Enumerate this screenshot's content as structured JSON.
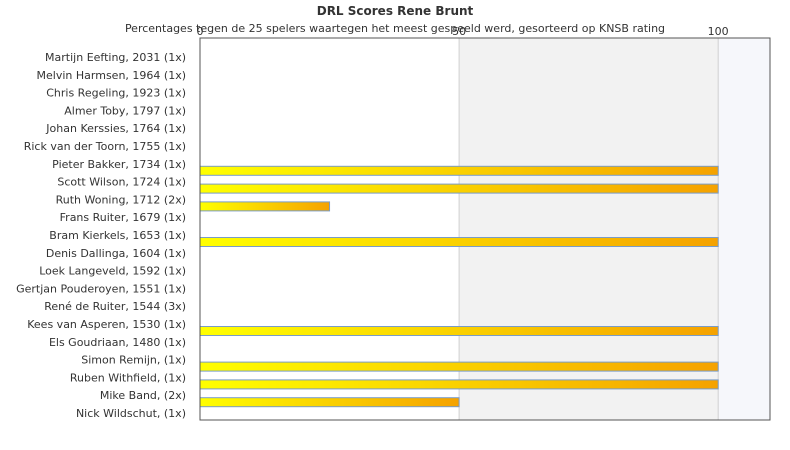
{
  "chart_data": {
    "type": "bar",
    "orientation": "horizontal",
    "title": "DRL Scores Rene Brunt",
    "subtitle": "Percentages tegen de 25 spelers waartegen het meest gespeeld werd, gesorteerd op KNSB rating",
    "xlim": [
      0,
      110
    ],
    "xticks": [
      0,
      50,
      100
    ],
    "categories": [
      "Martijn Eefting, 2031 (1x)",
      "Melvin Harmsen, 1964 (1x)",
      "Chris Regeling, 1923 (1x)",
      "Almer Toby, 1797 (1x)",
      "Johan Kerssies, 1764 (1x)",
      "Rick van der Toorn, 1755 (1x)",
      "Pieter Bakker, 1734 (1x)",
      "Scott Wilson, 1724 (1x)",
      "Ruth Woning, 1712 (2x)",
      "Frans Ruiter, 1679 (1x)",
      "Bram Kierkels, 1653 (1x)",
      "Denis Dallinga, 1604 (1x)",
      "Loek Langeveld, 1592 (1x)",
      "Gertjan Pouderoyen, 1551 (1x)",
      "René de Ruiter, 1544 (3x)",
      "Kees van Asperen, 1530 (1x)",
      "Els Goudriaan, 1480 (1x)",
      "Simon Remijn,  (1x)",
      "Ruben Withfield,  (1x)",
      "Mike Band,  (2x)",
      "Nick Wildschut,  (1x)"
    ],
    "values": [
      0,
      0,
      0,
      0,
      0,
      0,
      100,
      100,
      25,
      0,
      100,
      0,
      0,
      0,
      0,
      100,
      0,
      100,
      100,
      50,
      0
    ],
    "colors": {
      "bar_start": "#ffff00",
      "bar_end": "#f5a200",
      "bar_border": "#7a9cc6",
      "band_shade": "#f2f2f2",
      "band_end": "#f6f7fb",
      "frame": "#555555",
      "grid": "#d0d0d0"
    }
  }
}
